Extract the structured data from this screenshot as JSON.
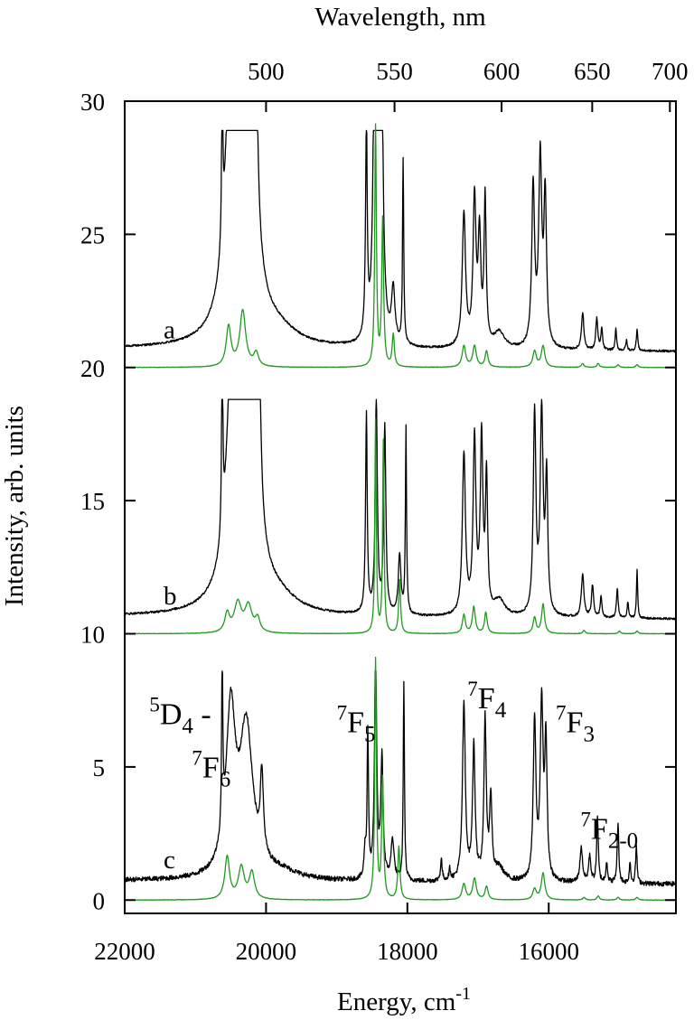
{
  "chart_data": {
    "type": "line",
    "title": "",
    "xlabel": "Energy, cm",
    "xlabel_sup": "-1",
    "ylabel": "Intensity, arb. units",
    "top_axis_label": "Wavelength, nm",
    "xlim": [
      22000,
      14200
    ],
    "ylim": [
      -0.5,
      30
    ],
    "x_reversed": true,
    "grid": false,
    "legend": "none",
    "xticks": [
      22000,
      20000,
      18000,
      16000
    ],
    "xtick_labels": [
      "22000",
      "20000",
      "18000",
      "16000"
    ],
    "yticks": [
      0,
      5,
      10,
      15,
      20,
      25,
      30
    ],
    "ytick_labels": [
      "0",
      "5",
      "10",
      "15",
      "20",
      "25",
      "30"
    ],
    "top_ticks_nm": [
      500,
      550,
      600,
      650,
      700
    ],
    "top_tick_labels": [
      "500",
      "550",
      "600",
      "650",
      "700"
    ],
    "trace_labels": [
      {
        "text": "a",
        "energy": 21450,
        "y": 21.1
      },
      {
        "text": "b",
        "energy": 21450,
        "y": 11.1
      },
      {
        "text": "c",
        "energy": 21450,
        "y": 1.2
      }
    ],
    "annotations": [
      {
        "pre": "5",
        "main": "D",
        "sub": "4",
        "post": " -",
        "energy": 21650,
        "y": 6.6
      },
      {
        "pre": "7",
        "main": "F",
        "sub": "6",
        "post": "",
        "energy": 21050,
        "y": 4.6
      },
      {
        "pre": "7",
        "main": "F",
        "sub": "5",
        "post": "",
        "energy": 19000,
        "y": 6.3
      },
      {
        "pre": "7",
        "main": "F",
        "sub": "4",
        "post": "",
        "energy": 17150,
        "y": 7.2
      },
      {
        "pre": "7",
        "main": "F",
        "sub": "3",
        "post": "",
        "energy": 15900,
        "y": 6.3
      },
      {
        "pre": "7",
        "main": "F",
        "sub": "2-0",
        "post": "",
        "energy": 15550,
        "y": 2.3
      }
    ],
    "series_colors": {
      "measured": "#000000",
      "reference": "#1f9a1f"
    },
    "series": [
      {
        "id": "a-measured",
        "color": "#000000",
        "base": 20.6,
        "noise": 0.04,
        "clip": 28.9,
        "drift": 0.2,
        "peaks": [
          [
            20620,
            6.5,
            10
          ],
          [
            20500,
            9.0,
            80
          ],
          [
            20300,
            14.0,
            120
          ],
          [
            20140,
            6.0,
            28
          ],
          [
            19800,
            0.4,
            300
          ],
          [
            18580,
            8.0,
            14
          ],
          [
            18450,
            28.0,
            20
          ],
          [
            18370,
            13.0,
            25
          ],
          [
            18200,
            2.0,
            28
          ],
          [
            18060,
            6.9,
            10
          ],
          [
            17200,
            5.0,
            28
          ],
          [
            17050,
            5.5,
            25
          ],
          [
            16980,
            4.0,
            22
          ],
          [
            16900,
            5.5,
            18
          ],
          [
            16700,
            0.6,
            90
          ],
          [
            16220,
            6.0,
            24
          ],
          [
            16120,
            7.0,
            26
          ],
          [
            16050,
            5.5,
            22
          ],
          [
            15520,
            1.4,
            20
          ],
          [
            15320,
            1.2,
            16
          ],
          [
            15250,
            0.8,
            14
          ],
          [
            15050,
            0.8,
            12
          ],
          [
            14900,
            0.4,
            12
          ],
          [
            14750,
            0.8,
            12
          ]
        ]
      },
      {
        "id": "a-reference",
        "color": "#1f9a1f",
        "base": 20.0,
        "noise": 0.008,
        "clip": 29.9,
        "drift": 0,
        "peaks": [
          [
            20530,
            1.5,
            40
          ],
          [
            20330,
            2.1,
            50
          ],
          [
            20140,
            0.5,
            40
          ],
          [
            18450,
            9.0,
            14
          ],
          [
            18350,
            5.5,
            16
          ],
          [
            18200,
            1.2,
            18
          ],
          [
            17200,
            0.8,
            30
          ],
          [
            17050,
            0.8,
            30
          ],
          [
            16880,
            0.6,
            25
          ],
          [
            16200,
            0.6,
            30
          ],
          [
            16080,
            0.8,
            30
          ],
          [
            15520,
            0.15,
            20
          ],
          [
            15300,
            0.15,
            20
          ],
          [
            15020,
            0.1,
            20
          ],
          [
            14750,
            0.1,
            20
          ]
        ]
      },
      {
        "id": "b-measured",
        "color": "#000000",
        "base": 10.55,
        "noise": 0.04,
        "clip": 18.8,
        "drift": 0.2,
        "peaks": [
          [
            20620,
            7.7,
            10
          ],
          [
            20480,
            8.0,
            80
          ],
          [
            20280,
            14.0,
            120
          ],
          [
            20100,
            6.5,
            28
          ],
          [
            19800,
            0.4,
            300
          ],
          [
            18580,
            7.5,
            14
          ],
          [
            18440,
            8.0,
            18
          ],
          [
            18320,
            7.0,
            18
          ],
          [
            18110,
            2.2,
            22
          ],
          [
            18020,
            7.0,
            10
          ],
          [
            17200,
            6.0,
            26
          ],
          [
            17050,
            6.5,
            24
          ],
          [
            16950,
            6.5,
            22
          ],
          [
            16880,
            5.0,
            18
          ],
          [
            16700,
            0.6,
            90
          ],
          [
            16200,
            7.5,
            22
          ],
          [
            16100,
            7.5,
            24
          ],
          [
            16030,
            5.0,
            20
          ],
          [
            15520,
            1.6,
            22
          ],
          [
            15380,
            1.2,
            18
          ],
          [
            15260,
            0.8,
            14
          ],
          [
            15030,
            1.1,
            14
          ],
          [
            14880,
            0.6,
            12
          ],
          [
            14750,
            1.8,
            10
          ]
        ]
      },
      {
        "id": "b-reference",
        "color": "#1f9a1f",
        "base": 10.0,
        "noise": 0.008,
        "clip": 19.9,
        "drift": 0,
        "peaks": [
          [
            20550,
            0.7,
            40
          ],
          [
            20400,
            1.1,
            60
          ],
          [
            20250,
            1.0,
            60
          ],
          [
            20120,
            0.5,
            40
          ],
          [
            18450,
            8.0,
            12
          ],
          [
            18340,
            7.2,
            12
          ],
          [
            18110,
            2.0,
            16
          ],
          [
            17200,
            0.7,
            25
          ],
          [
            17060,
            1.0,
            25
          ],
          [
            16890,
            0.8,
            22
          ],
          [
            16200,
            0.6,
            25
          ],
          [
            16080,
            1.1,
            25
          ],
          [
            15500,
            0.12,
            20
          ],
          [
            15000,
            0.1,
            20
          ],
          [
            14750,
            0.1,
            20
          ]
        ]
      },
      {
        "id": "c-measured",
        "color": "#000000",
        "base": 0.6,
        "noise": 0.09,
        "clip": 8.6,
        "drift": 0.25,
        "peaks": [
          [
            20620,
            6.5,
            10
          ],
          [
            20500,
            6.0,
            80
          ],
          [
            20280,
            5.5,
            110
          ],
          [
            20060,
            3.0,
            26
          ],
          [
            19800,
            0.3,
            300
          ],
          [
            18600,
            1.0,
            14
          ],
          [
            18560,
            5.5,
            12
          ],
          [
            18450,
            8.6,
            18
          ],
          [
            18360,
            4.5,
            20
          ],
          [
            18210,
            1.5,
            25
          ],
          [
            18050,
            7.4,
            10
          ],
          [
            17520,
            0.8,
            14
          ],
          [
            17400,
            0.4,
            14
          ],
          [
            17200,
            6.6,
            24
          ],
          [
            17060,
            5.0,
            22
          ],
          [
            16900,
            6.0,
            20
          ],
          [
            16820,
            3.0,
            20
          ],
          [
            16700,
            0.5,
            80
          ],
          [
            16200,
            6.0,
            22
          ],
          [
            16100,
            6.5,
            24
          ],
          [
            16040,
            5.0,
            20
          ],
          [
            15540,
            1.3,
            22
          ],
          [
            15420,
            1.0,
            18
          ],
          [
            15310,
            2.4,
            14
          ],
          [
            15180,
            0.8,
            14
          ],
          [
            15020,
            2.2,
            14
          ],
          [
            14850,
            0.8,
            12
          ],
          [
            14760,
            1.4,
            12
          ]
        ]
      },
      {
        "id": "c-reference",
        "color": "#1f9a1f",
        "base": 0.0,
        "noise": 0.008,
        "clip": 9.95,
        "drift": 0,
        "peaks": [
          [
            20550,
            1.6,
            40
          ],
          [
            20350,
            1.2,
            50
          ],
          [
            20200,
            1.0,
            45
          ],
          [
            18450,
            9.0,
            14
          ],
          [
            18350,
            4.5,
            16
          ],
          [
            18120,
            2.0,
            18
          ],
          [
            17200,
            0.6,
            30
          ],
          [
            17050,
            0.8,
            30
          ],
          [
            16880,
            0.5,
            25
          ],
          [
            16200,
            0.4,
            30
          ],
          [
            16080,
            1.0,
            30
          ],
          [
            15500,
            0.1,
            20
          ],
          [
            15300,
            0.15,
            20
          ],
          [
            15020,
            0.1,
            20
          ],
          [
            14750,
            0.1,
            20
          ]
        ]
      }
    ]
  }
}
